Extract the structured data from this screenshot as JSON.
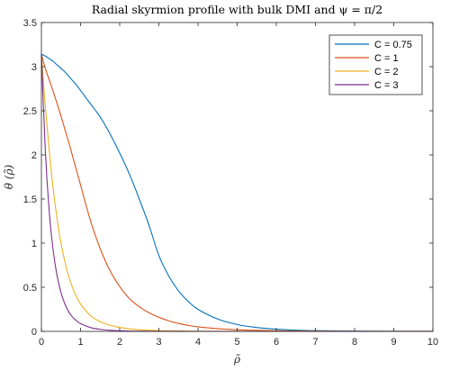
{
  "chart_data": {
    "type": "line",
    "title": "Radial skyrmion profile with bulk DMI and ψ = π/2",
    "xlabel": "ρ̃",
    "ylabel": "θ (ρ̃)",
    "xlim": [
      0,
      10
    ],
    "ylim": [
      0,
      3.5
    ],
    "xticks": [
      "0",
      "1",
      "2",
      "3",
      "4",
      "5",
      "6",
      "7",
      "8",
      "9",
      "10"
    ],
    "yticks": [
      "0",
      "0.5",
      "1",
      "1.5",
      "2",
      "2.5",
      "3",
      "3.5"
    ],
    "grid": false,
    "legend_position": "top-right",
    "x": [
      0,
      0.1,
      0.2,
      0.3,
      0.4,
      0.5,
      0.6,
      0.7,
      0.8,
      0.9,
      1.0,
      1.25,
      1.5,
      1.75,
      2.0,
      2.25,
      2.5,
      2.75,
      3.0,
      3.25,
      3.5,
      3.75,
      4.0,
      4.5,
      5.0,
      5.5,
      6.0,
      6.5,
      7.0,
      7.5,
      8.0,
      8.5,
      9.0,
      9.5,
      10.0
    ],
    "series": [
      {
        "name": "C = 0.75",
        "color": "#0072BD",
        "values": [
          3.1416,
          3.12,
          3.09,
          3.06,
          3.02,
          2.98,
          2.94,
          2.89,
          2.84,
          2.79,
          2.73,
          2.58,
          2.43,
          2.24,
          2.02,
          1.78,
          1.5,
          1.2,
          0.86,
          0.63,
          0.46,
          0.34,
          0.25,
          0.14,
          0.078,
          0.044,
          0.025,
          0.014,
          0.008,
          0.005,
          0.003,
          0.002,
          0.001,
          0.0006,
          0.0003
        ]
      },
      {
        "name": "C = 1",
        "color": "#D95319",
        "values": [
          3.1416,
          2.98,
          2.85,
          2.72,
          2.58,
          2.44,
          2.29,
          2.14,
          1.98,
          1.82,
          1.66,
          1.26,
          0.94,
          0.69,
          0.51,
          0.37,
          0.28,
          0.21,
          0.16,
          0.12,
          0.09,
          0.068,
          0.052,
          0.031,
          0.019,
          0.012,
          0.007,
          0.0045,
          0.003,
          0.002,
          0.0013,
          0.0008,
          0.0005,
          0.0003,
          0.0002
        ]
      },
      {
        "name": "C = 2",
        "color": "#EDB120",
        "values": [
          3.1416,
          2.55,
          2.05,
          1.62,
          1.28,
          1.0,
          0.79,
          0.62,
          0.49,
          0.39,
          0.31,
          0.18,
          0.11,
          0.07,
          0.045,
          0.029,
          0.019,
          0.013,
          0.009,
          0.006,
          0.004,
          0.003,
          0.002,
          0.001,
          0.0005,
          0.0003,
          0.0002,
          0.0001,
          0.0001,
          0.0001,
          0,
          0,
          0,
          0,
          0
        ]
      },
      {
        "name": "C = 3",
        "color": "#7E2F8E",
        "values": [
          3.1416,
          2.05,
          1.36,
          0.92,
          0.63,
          0.44,
          0.31,
          0.22,
          0.16,
          0.12,
          0.088,
          0.044,
          0.023,
          0.012,
          0.0065,
          0.0035,
          0.002,
          0.001,
          0.0006,
          0.0003,
          0.0002,
          0.0001,
          0.0001,
          0,
          0,
          0,
          0,
          0,
          0,
          0,
          0,
          0,
          0,
          0,
          0
        ]
      }
    ]
  }
}
